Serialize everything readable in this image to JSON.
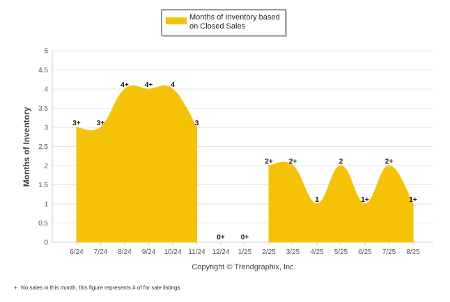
{
  "chart_data": {
    "type": "area",
    "categories": [
      "6/24",
      "7/24",
      "8/24",
      "9/24",
      "10/24",
      "11/24",
      "12/24",
      "1/25",
      "2/25",
      "3/25",
      "4/25",
      "5/25",
      "6/25",
      "7/25",
      "8/25"
    ],
    "series": [
      {
        "name": "Months of Inventory based on Closed Sales",
        "values": [
          3,
          3,
          4,
          4,
          4,
          3,
          0,
          0,
          2,
          2,
          1,
          2,
          1,
          2,
          1
        ],
        "labels": [
          "3+",
          "3+",
          "4+",
          "4+",
          "4",
          "3",
          "0+",
          "0+",
          "2+",
          "2+",
          "1",
          "2",
          "1+",
          "2+",
          "1+"
        ],
        "color": "#F5C207"
      }
    ],
    "ylabel": "Months of Inventory",
    "xlabel": "",
    "ylim": [
      0,
      5
    ],
    "yticks": [
      "0",
      "0.5",
      "1",
      "1.5",
      "2",
      "2.5",
      "3",
      "3.5",
      "4",
      "4.5",
      "5"
    ],
    "grid": true,
    "legend": "top-center",
    "legend_lines": [
      "Months of Inventory based",
      "on Closed Sales"
    ]
  },
  "copyright": "Copyright © Trendgraphix, Inc.",
  "footnote_marker": "+",
  "footnote": "No sales in this month, this figure represents # of for sale listings"
}
